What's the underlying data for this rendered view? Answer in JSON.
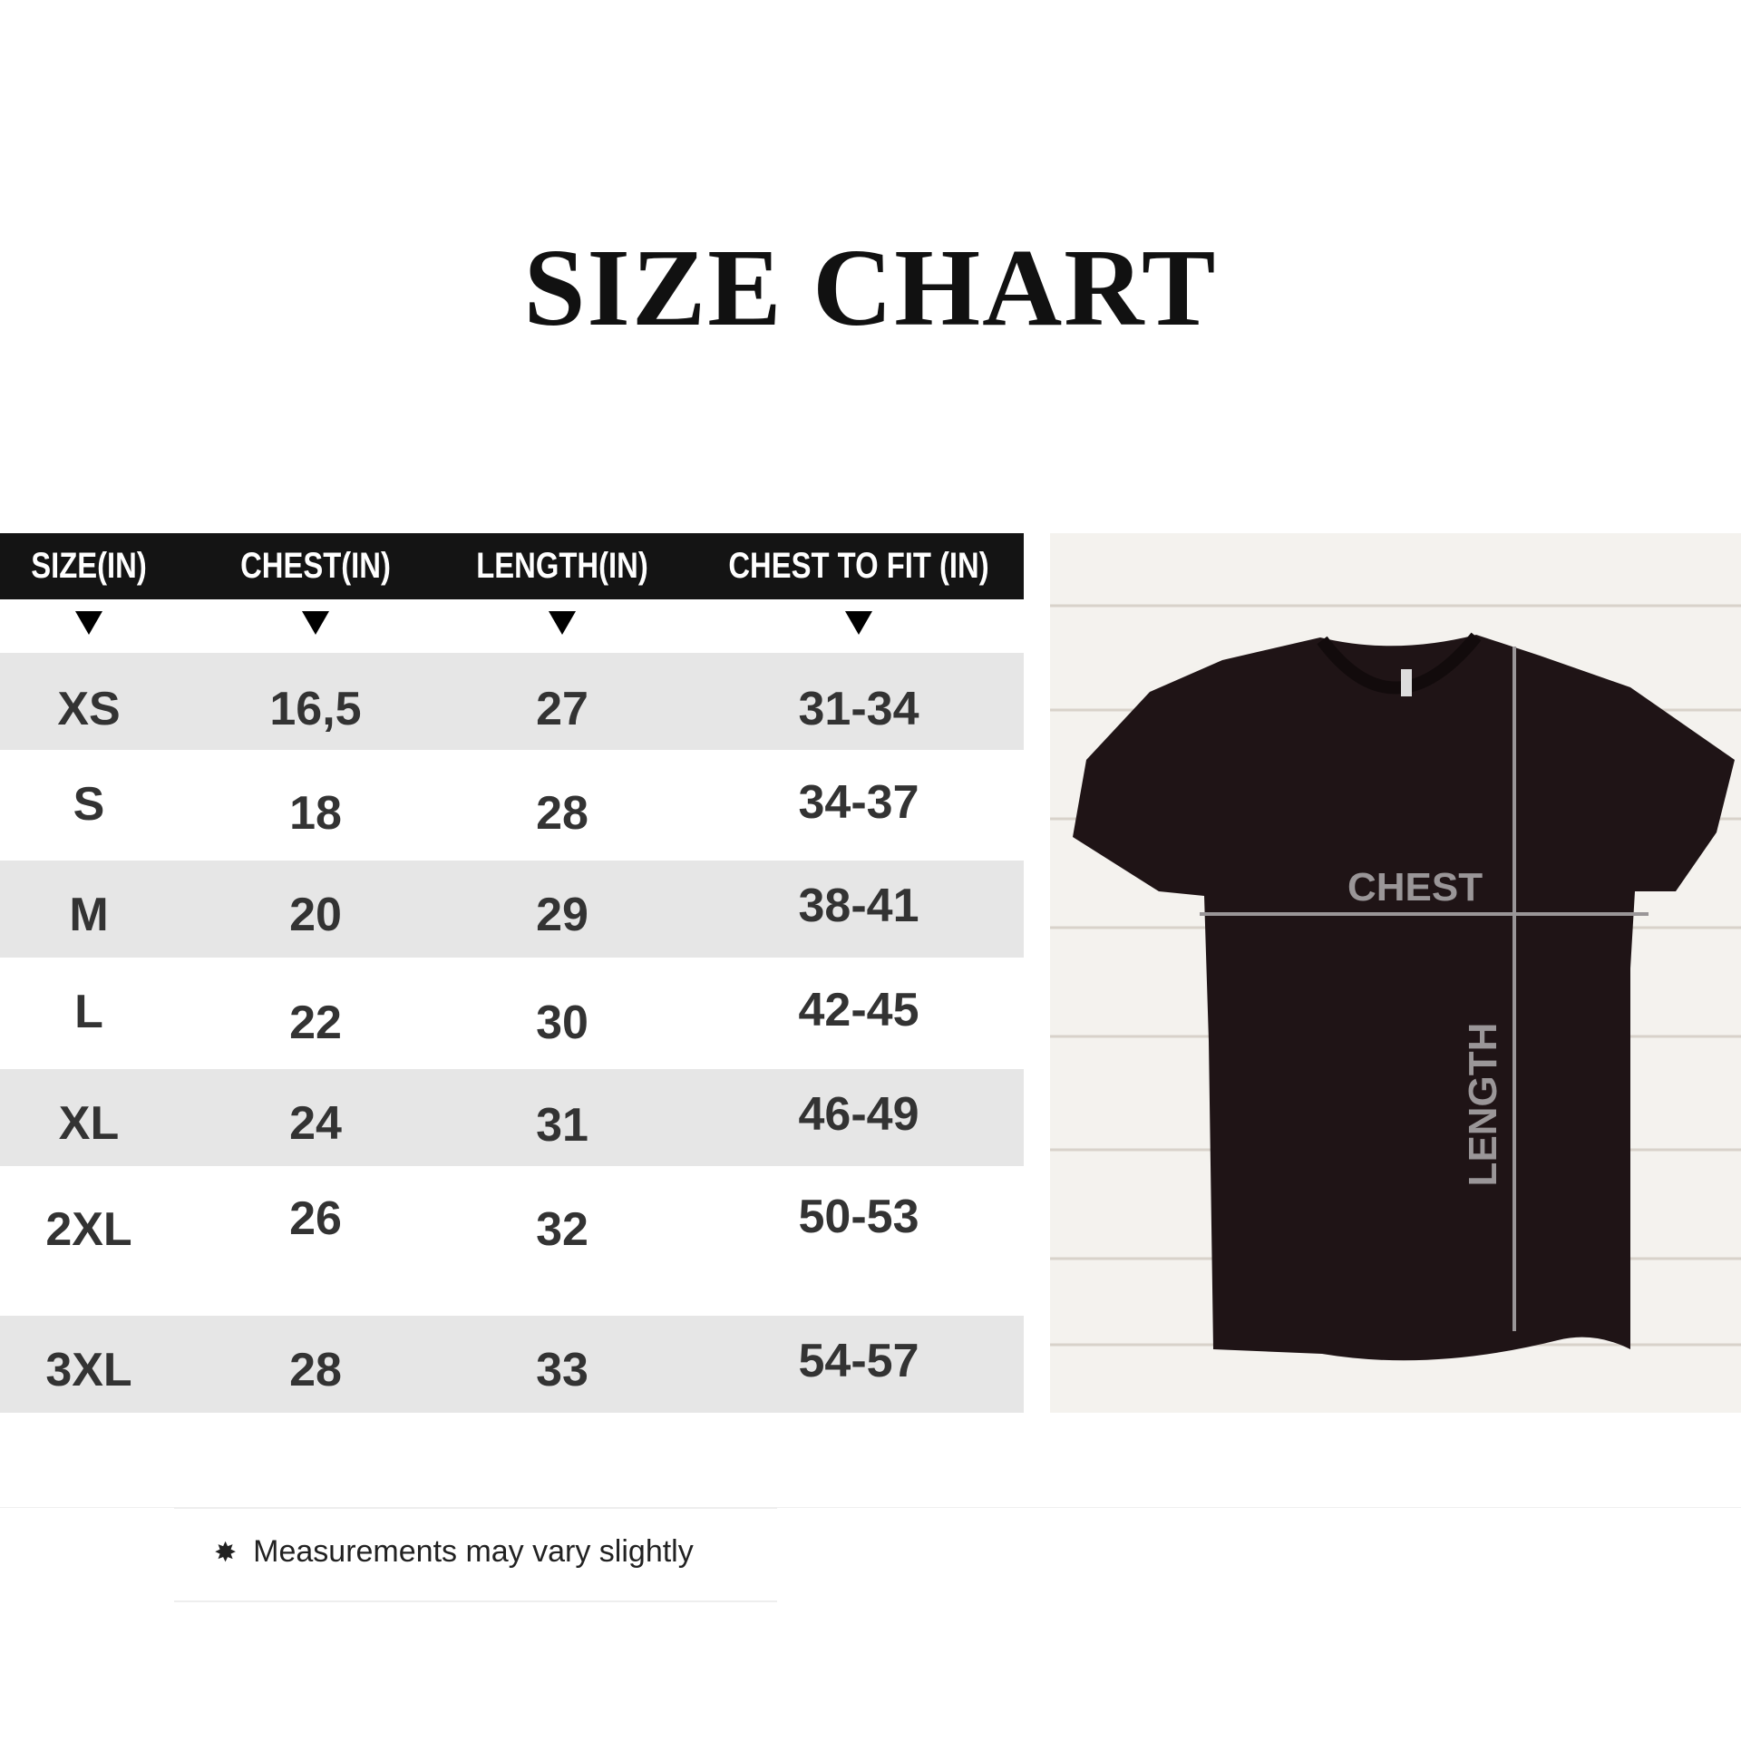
{
  "title": "SIZE CHART",
  "table": {
    "headers": [
      "SIZE(IN)",
      "CHEST(IN)",
      "LENGTH(IN)",
      "CHEST TO FIT (IN)"
    ],
    "rows": [
      [
        "XS",
        "16,5",
        "27",
        "31-34"
      ],
      [
        "S",
        "18",
        "28",
        "34-37"
      ],
      [
        "M",
        "20",
        "29",
        "38-41"
      ],
      [
        "L",
        "22",
        "30",
        "42-45"
      ],
      [
        "XL",
        "24",
        "31",
        "46-49"
      ],
      [
        "2XL",
        "26",
        "32",
        "50-53"
      ],
      [
        "3XL",
        "28",
        "33",
        "54-57"
      ]
    ]
  },
  "diagram": {
    "chest_label": "CHEST",
    "length_label": "LENGTH",
    "shirt_color": "#1f1416",
    "guide_color": "#9a9698"
  },
  "footer": {
    "icon": "asterisk-star-icon",
    "note": "Measurements may vary slightly"
  },
  "colors": {
    "header_bg": "#141414",
    "row_stripe": "#e6e6e6",
    "text": "#333333"
  }
}
